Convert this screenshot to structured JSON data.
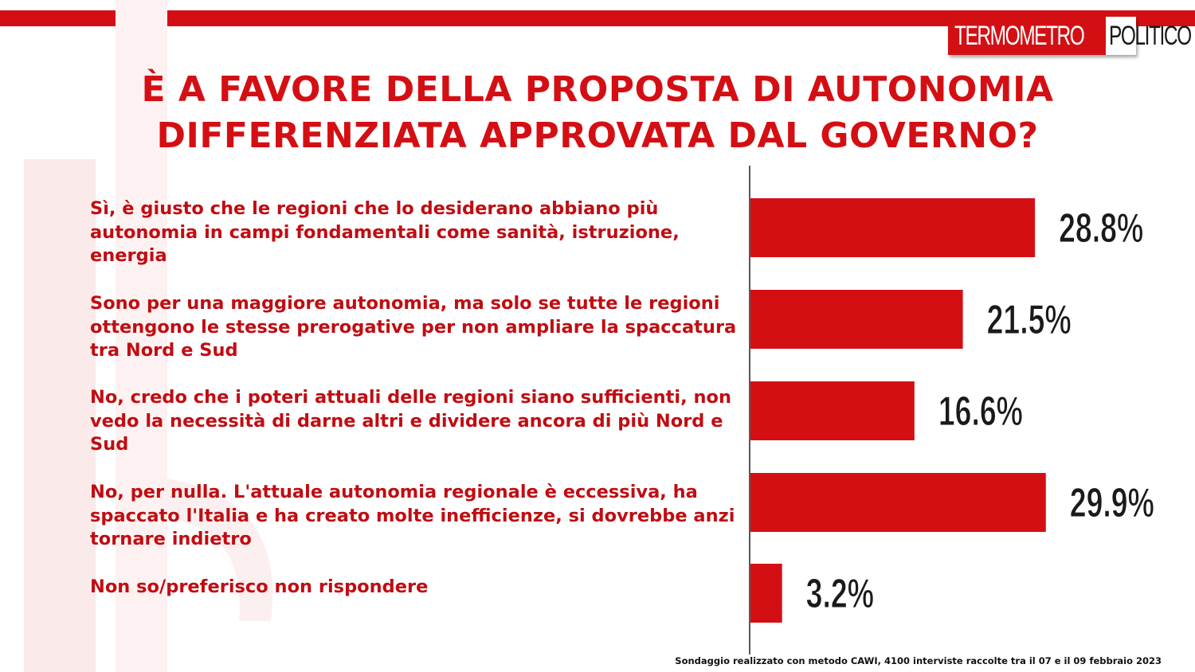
{
  "logo": {
    "part1": "TERMOMETRO",
    "part2": "POLITICO"
  },
  "title": {
    "line1": "È A FAVORE DELLA PROPOSTA DI AUTONOMIA",
    "line2": "DIFFERENZIATA APPROVATA DAL GOVERNO?"
  },
  "footnote": "Sondaggio realizzato con metodo CAWI, 4100 interviste raccolte tra il 07 e il 09 febbraio 2023",
  "colors": {
    "accent": "#d40f14",
    "label": "#c00d12",
    "value_text": "#1a1a1a"
  },
  "chart_data": {
    "type": "bar",
    "orientation": "horizontal",
    "categories": [
      "Sì, è giusto che le regioni che lo desiderano abbiano più autonomia in campi fondamentali come sanità, istruzione, energia",
      "Sono per una maggiore autonomia, ma solo se tutte le regioni ottengono le stesse prerogative per non ampliare la spaccatura tra Nord e Sud",
      "No, credo che i poteri attuali delle regioni siano sufficienti, non vedo la necessità  di darne altri e dividere ancora di più Nord e Sud",
      "No, per nulla. L'attuale autonomia regionale è eccessiva, ha spaccato l'Italia e ha creato molte inefficienze, si dovrebbe anzi tornare indietro",
      "Non so/preferisco non rispondere"
    ],
    "values": [
      28.8,
      21.5,
      16.6,
      29.9,
      3.2
    ],
    "value_labels": [
      "28.8%",
      "21.5%",
      "16.6%",
      "29.9%",
      "3.2%"
    ],
    "unit": "%",
    "grid": false,
    "legend": "none"
  }
}
